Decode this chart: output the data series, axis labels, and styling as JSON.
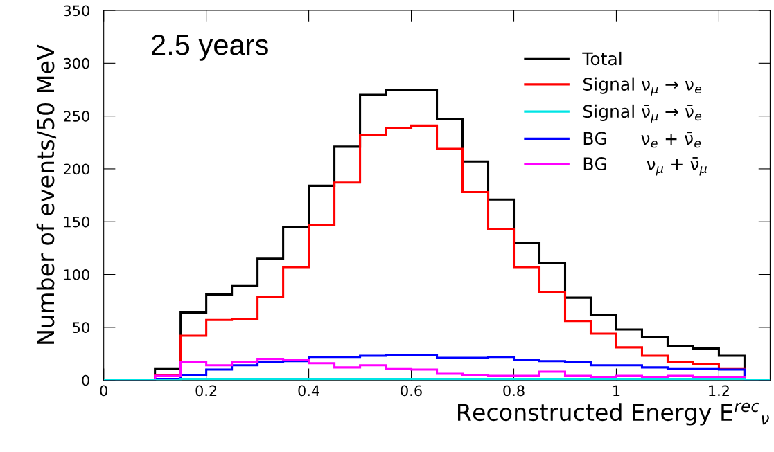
{
  "chart_data": {
    "type": "histogram",
    "xlabel": "Reconstructed Energy E$^{rec}$$_{ν}$",
    "ylabel": "Number of events/50 MeV",
    "annotations": [
      "2.5 years"
    ],
    "bins": [
      0,
      0.05,
      0.1,
      0.15,
      0.2,
      0.25,
      0.3,
      0.35,
      0.4,
      0.45,
      0.5,
      0.55,
      0.6,
      0.65,
      0.7,
      0.75,
      0.8,
      0.85,
      0.9,
      0.95,
      1.0,
      1.05,
      1.1,
      1.15,
      1.2,
      1.25,
      1.3
    ],
    "series": [
      {
        "name": "Total",
        "color": "#000000",
        "values": [
          0,
          0,
          11,
          64,
          81,
          89,
          115,
          145,
          184,
          221,
          270,
          275,
          275,
          247,
          207,
          171,
          130,
          111,
          78,
          62,
          48,
          41,
          32,
          30,
          23,
          0
        ]
      },
      {
        "name": "Signal ν$_{μ}$ → ν$_{e}$",
        "color": "#ff0000",
        "values": [
          0,
          0,
          5,
          42,
          57,
          58,
          79,
          107,
          147,
          187,
          232,
          239,
          241,
          219,
          178,
          143,
          107,
          83,
          56,
          44,
          31,
          23,
          17,
          15,
          11,
          0
        ]
      },
      {
        "name": "Signal ν̄$_{μ}$ → ν̄$_{e}$",
        "color": "#00e5e5",
        "values": [
          0,
          0,
          0,
          1,
          1,
          1,
          1,
          1,
          1,
          1,
          1,
          1,
          1,
          1,
          1,
          1,
          1,
          1,
          1,
          1,
          1,
          1,
          1,
          1,
          1,
          0
        ]
      },
      {
        "name": "BG      ν$_{e}$ + ν̄$_{e}$",
        "color": "#0000ff",
        "values": [
          0,
          0,
          1,
          5,
          10,
          14,
          17,
          18,
          22,
          22,
          23,
          24,
          24,
          21,
          21,
          22,
          19,
          18,
          17,
          14,
          14,
          12,
          11,
          11,
          10,
          0
        ]
      },
      {
        "name": "BG       ν$_{μ}$ + ν̄$_{μ}$",
        "color": "#ff00ff",
        "values": [
          0,
          0,
          4,
          17,
          14,
          17,
          20,
          19,
          16,
          12,
          14,
          11,
          10,
          6,
          5,
          4,
          4,
          8,
          4,
          3,
          4,
          3,
          4,
          3,
          3,
          0
        ]
      }
    ],
    "xlim": [
      0,
      1.3
    ],
    "xticks": [
      0,
      0.2,
      0.4,
      0.6,
      0.8,
      1,
      1.2
    ],
    "ylim": [
      0,
      350
    ],
    "yticks": [
      0,
      50,
      100,
      150,
      200,
      250,
      300,
      350
    ],
    "legend": "top right",
    "grid": false
  }
}
